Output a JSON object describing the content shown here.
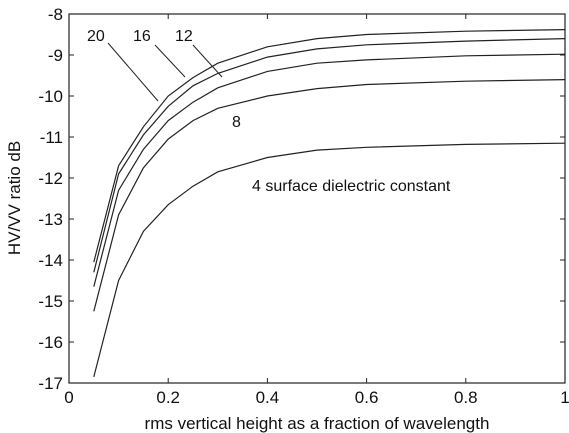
{
  "chart_data": {
    "type": "line",
    "title": "",
    "xlabel": "rms vertical height as a fraction of wavelength",
    "ylabel": "HV/VV ratio dB",
    "xlim": [
      0,
      1
    ],
    "ylim": [
      -17,
      -8
    ],
    "xticks": [
      0,
      0.2,
      0.4,
      0.6,
      0.8,
      1
    ],
    "xtick_labels": [
      "0",
      "0.2",
      "0.4",
      "0.6",
      "0.8",
      "1"
    ],
    "yticks": [
      -17,
      -16,
      -15,
      -14,
      -13,
      -12,
      -11,
      -10,
      -9,
      -8
    ],
    "ytick_labels": [
      "-17",
      "-16",
      "-15",
      "-14",
      "-13",
      "-12",
      "-11",
      "-10",
      "-9",
      "-8"
    ],
    "grid": false,
    "x": [
      0.05,
      0.1,
      0.15,
      0.2,
      0.25,
      0.3,
      0.4,
      0.5,
      0.6,
      0.8,
      1.0
    ],
    "series": [
      {
        "name": "20",
        "values": [
          -14.05,
          -11.7,
          -10.75,
          -10.0,
          -9.55,
          -9.2,
          -8.8,
          -8.6,
          -8.5,
          -8.42,
          -8.38
        ]
      },
      {
        "name": "16",
        "values": [
          -14.3,
          -11.9,
          -10.95,
          -10.25,
          -9.75,
          -9.45,
          -9.05,
          -8.85,
          -8.75,
          -8.66,
          -8.6
        ]
      },
      {
        "name": "12",
        "values": [
          -14.65,
          -12.3,
          -11.3,
          -10.6,
          -10.15,
          -9.8,
          -9.4,
          -9.2,
          -9.12,
          -9.02,
          -8.98
        ]
      },
      {
        "name": "8",
        "values": [
          -15.25,
          -12.9,
          -11.75,
          -11.05,
          -10.6,
          -10.3,
          -10.0,
          -9.82,
          -9.72,
          -9.64,
          -9.6
        ]
      },
      {
        "name": "4",
        "values": [
          -16.85,
          -14.5,
          -13.3,
          -12.65,
          -12.2,
          -11.85,
          -11.5,
          -11.32,
          -11.25,
          -11.18,
          -11.15
        ]
      }
    ],
    "annotations": {
      "label_20": "20",
      "label_16": "16",
      "label_12": "12",
      "label_8": "8",
      "label_4": "4 surface dielectric constant"
    }
  }
}
